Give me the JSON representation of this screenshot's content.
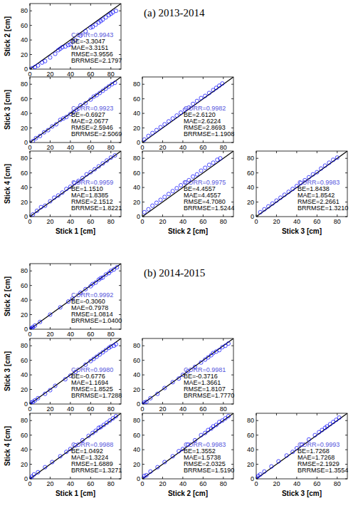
{
  "chart_data": [
    {
      "type": "scatter",
      "title": "(a) 2013-2014",
      "y_label": "Stick 2 [cm]",
      "x": [
        2,
        5,
        8,
        12,
        15,
        20,
        25,
        28,
        30,
        32,
        35,
        38,
        40,
        42,
        45,
        50,
        55,
        60,
        62,
        65,
        68,
        70,
        72,
        75,
        78,
        80,
        82,
        85
      ],
      "values": [
        1,
        3,
        5,
        9,
        11,
        16,
        21,
        26,
        28,
        30,
        31,
        33,
        34,
        38,
        40,
        46,
        52,
        57,
        58,
        61,
        64,
        66,
        68,
        71,
        74,
        76,
        78,
        80
      ],
      "color": "#0000ff",
      "marker": "open-circle",
      "xlim": [
        0,
        90
      ],
      "ylim": [
        0,
        90
      ],
      "xticks": [
        0,
        20,
        40,
        60,
        80
      ],
      "yticks": [
        0,
        20,
        40,
        60,
        80
      ],
      "annotations": [
        "CORR=0.9943",
        "BE=-3.3047",
        "MAE=3.3151",
        "RMSE=3.9556",
        "BRRMSE=2.1797"
      ]
    },
    {
      "type": "scatter",
      "y_label": "Stick 3 [cm]",
      "x": [
        3,
        6,
        10,
        14,
        18,
        22,
        26,
        30,
        33,
        36,
        40,
        43,
        46,
        50,
        55,
        60,
        63,
        66,
        69,
        72,
        75,
        78,
        81,
        84
      ],
      "values": [
        2,
        6,
        9,
        14,
        17,
        22,
        25,
        31,
        33,
        35,
        39,
        42,
        45,
        51,
        54,
        59,
        63,
        65,
        68,
        71,
        74,
        77,
        80,
        82
      ],
      "color": "#0000ff",
      "marker": "open-circle",
      "xlim": [
        0,
        90
      ],
      "ylim": [
        0,
        90
      ],
      "xticks": [
        0,
        20,
        40,
        60,
        80
      ],
      "yticks": [
        0,
        20,
        40,
        60,
        80
      ],
      "annotations": [
        "CORR=0.9923",
        "BE=-0.6927",
        "MAE=2.0677",
        "RMSE=2.5946",
        "BRRMSE=2.5069"
      ]
    },
    {
      "type": "scatter",
      "x": [
        2,
        6,
        10,
        14,
        18,
        22,
        26,
        30,
        34,
        38,
        42,
        46,
        50,
        54,
        58,
        62,
        66,
        70,
        73,
        76,
        79
      ],
      "values": [
        4,
        9,
        13,
        17,
        21,
        25,
        29,
        33,
        37,
        41,
        45,
        48,
        53,
        57,
        61,
        64,
        68,
        72,
        75,
        78,
        81
      ],
      "color": "#0000ff",
      "marker": "open-circle",
      "xlim": [
        0,
        90
      ],
      "ylim": [
        0,
        90
      ],
      "xticks": [
        0,
        20,
        40,
        60,
        80
      ],
      "yticks": [
        0,
        20,
        40,
        60,
        80
      ],
      "annotations": [
        "CORR=0.9982",
        "BE=2.6120",
        "MAE=2.6224",
        "RMSE=2.8693",
        "BRRMSE=1.1908"
      ]
    },
    {
      "type": "scatter",
      "y_label": "Stick 4 [cm]",
      "x_label": "Stick 1 [cm]",
      "x": [
        3,
        7,
        11,
        15,
        20,
        24,
        28,
        32,
        36,
        40,
        44,
        48,
        52,
        56,
        60,
        64,
        68,
        72,
        76,
        80,
        84
      ],
      "values": [
        3,
        8,
        13,
        15,
        21,
        26,
        29,
        33,
        38,
        41,
        46,
        49,
        53,
        58,
        61,
        65,
        69,
        73,
        77,
        81,
        84
      ],
      "color": "#0000ff",
      "marker": "open-circle",
      "xlim": [
        0,
        90
      ],
      "ylim": [
        0,
        90
      ],
      "xticks": [
        0,
        20,
        40,
        60,
        80
      ],
      "yticks": [
        0,
        20,
        40,
        60,
        80
      ],
      "annotations": [
        "CORR=0.9959",
        "BE=1.1510",
        "MAE=1.8385",
        "RMSE=2.1512",
        "BRRMSE=1.8221"
      ]
    },
    {
      "type": "scatter",
      "x_label": "Stick 2 [cm]",
      "x": [
        2,
        6,
        10,
        14,
        18,
        22,
        26,
        30,
        34,
        38,
        42,
        46,
        50,
        54,
        58,
        62,
        66,
        70,
        74,
        77
      ],
      "values": [
        6,
        10,
        15,
        19,
        23,
        27,
        31,
        35,
        39,
        43,
        47,
        50,
        55,
        58,
        63,
        67,
        71,
        74,
        78,
        80
      ],
      "color": "#0000ff",
      "marker": "open-circle",
      "xlim": [
        0,
        90
      ],
      "ylim": [
        0,
        90
      ],
      "xticks": [
        0,
        20,
        40,
        60,
        80
      ],
      "yticks": [
        0,
        20,
        40,
        60,
        80
      ],
      "annotations": [
        "CORR=0.9975",
        "BE=4.4557",
        "MAE=4.4557",
        "RMSE=4.7080",
        "BRRMSE=1.5244"
      ]
    },
    {
      "type": "scatter",
      "x_label": "Stick 3 [cm]",
      "x": [
        4,
        8,
        12,
        16,
        20,
        24,
        28,
        32,
        36,
        40,
        44,
        48,
        52,
        56,
        60,
        64,
        68,
        72,
        76,
        80
      ],
      "values": [
        6,
        10,
        14,
        18,
        22,
        26,
        30,
        34,
        38,
        42,
        46,
        50,
        54,
        58,
        61,
        66,
        70,
        74,
        78,
        81
      ],
      "color": "#0000ff",
      "marker": "open-circle",
      "xlim": [
        0,
        90
      ],
      "ylim": [
        0,
        90
      ],
      "xticks": [
        0,
        20,
        40,
        60,
        80
      ],
      "yticks": [
        0,
        20,
        40,
        60,
        80
      ],
      "annotations": [
        "CORR=0.9983",
        "BE=1.8438",
        "MAE=1.8542",
        "RMSE=2.2661",
        "BRRMSE=1.3210"
      ]
    },
    {
      "type": "scatter",
      "title": "(b) 2014-2015",
      "y_label": "Stick 2 [cm]",
      "x": [
        0,
        1,
        2,
        3,
        5,
        10,
        20,
        30,
        38,
        42,
        50,
        55,
        60,
        62,
        65,
        68,
        70,
        72,
        75,
        78,
        80,
        83,
        86
      ],
      "values": [
        0,
        1,
        1,
        3,
        5,
        10,
        20,
        30,
        38,
        42,
        50,
        55,
        59,
        62,
        64,
        68,
        70,
        71,
        75,
        77,
        80,
        82,
        85
      ],
      "color": "#0000ff",
      "marker": "open-circle",
      "xlim": [
        0,
        90
      ],
      "ylim": [
        0,
        90
      ],
      "xticks": [
        0,
        20,
        40,
        60,
        80
      ],
      "yticks": [
        0,
        20,
        40,
        60,
        80
      ],
      "annotations": [
        "CORR=0.9992",
        "BE=-0.3060",
        "MAE=0.7978",
        "RMSE=1.0814",
        "BRRMSE=1.0400"
      ]
    },
    {
      "type": "scatter",
      "y_label": "Stick 3 [cm]",
      "x": [
        0,
        1,
        3,
        5,
        8,
        15,
        20,
        25,
        35,
        40,
        45,
        55,
        60,
        63,
        66,
        69,
        72,
        75,
        78,
        80,
        83,
        85
      ],
      "values": [
        0,
        2,
        3,
        5,
        8,
        14,
        19,
        25,
        34,
        39,
        44,
        54,
        59,
        62,
        65,
        68,
        71,
        74,
        77,
        79,
        80,
        82
      ],
      "color": "#0000ff",
      "marker": "open-circle",
      "xlim": [
        0,
        90
      ],
      "ylim": [
        0,
        90
      ],
      "xticks": [
        0,
        20,
        40,
        60,
        80
      ],
      "yticks": [
        0,
        20,
        40,
        60,
        80
      ],
      "annotations": [
        "CORR=0.9980",
        "BE=-0.6776",
        "MAE=1.1694",
        "RMSE=1.8525",
        "BRRMSE=1.7288"
      ]
    },
    {
      "type": "scatter",
      "x": [
        0,
        2,
        4,
        8,
        15,
        22,
        30,
        36,
        40,
        45,
        52,
        58,
        62,
        65,
        68,
        70,
        73,
        76,
        79,
        82,
        85
      ],
      "values": [
        0,
        2,
        3,
        8,
        14,
        22,
        30,
        35,
        40,
        45,
        51,
        57,
        61,
        64,
        67,
        70,
        72,
        74,
        78,
        80,
        83
      ],
      "color": "#0000ff",
      "marker": "open-circle",
      "xlim": [
        0,
        90
      ],
      "ylim": [
        0,
        90
      ],
      "xticks": [
        0,
        20,
        40,
        60,
        80
      ],
      "yticks": [
        0,
        20,
        40,
        60,
        80
      ],
      "annotations": [
        "CORR=0.9981",
        "BE=-0.3716",
        "MAE=1.3661",
        "RMSE=1.8107",
        "BRRMSE=1.7770"
      ]
    },
    {
      "type": "scatter",
      "y_label": "Stick 4 [cm]",
      "x_label": "Stick 1 [cm]",
      "x": [
        0,
        2,
        4,
        8,
        15,
        22,
        30,
        36,
        40,
        45,
        52,
        58,
        62,
        65,
        68,
        70,
        73,
        76,
        79,
        82,
        85
      ],
      "values": [
        1,
        3,
        6,
        9,
        16,
        23,
        31,
        37,
        41,
        46,
        53,
        59,
        63,
        66,
        70,
        71,
        74,
        77,
        80,
        83,
        86
      ],
      "color": "#0000ff",
      "marker": "open-circle",
      "xlim": [
        0,
        90
      ],
      "ylim": [
        0,
        90
      ],
      "xticks": [
        0,
        20,
        40,
        60,
        80
      ],
      "yticks": [
        0,
        20,
        40,
        60,
        80
      ],
      "annotations": [
        "CORR=0.9988",
        "BE=1.0492",
        "MAE=1.3224",
        "RMSE=1.6889",
        "BRRMSE=1.3271"
      ]
    },
    {
      "type": "scatter",
      "x_label": "Stick 2 [cm]",
      "x": [
        0,
        2,
        4,
        8,
        15,
        22,
        30,
        36,
        40,
        45,
        52,
        58,
        62,
        65,
        68,
        70,
        73,
        76,
        79,
        82,
        85
      ],
      "values": [
        1,
        4,
        5,
        10,
        16,
        23,
        31,
        38,
        41,
        47,
        53,
        60,
        63,
        67,
        69,
        72,
        74,
        78,
        80,
        83,
        86
      ],
      "color": "#0000ff",
      "marker": "open-circle",
      "xlim": [
        0,
        90
      ],
      "ylim": [
        0,
        90
      ],
      "xticks": [
        0,
        20,
        40,
        60,
        80
      ],
      "yticks": [
        0,
        20,
        40,
        60,
        80
      ],
      "annotations": [
        "CORR=0.9983",
        "BE=1.3552",
        "MAE=1.5738",
        "RMSE=2.0325",
        "BRRMSE=1.5190"
      ]
    },
    {
      "type": "scatter",
      "x_label": "Stick 3 [cm]",
      "x": [
        0,
        2,
        4,
        8,
        15,
        22,
        30,
        36,
        40,
        45,
        52,
        58,
        62,
        65,
        68,
        70,
        73,
        76,
        79,
        82
      ],
      "values": [
        2,
        4,
        6,
        10,
        17,
        24,
        32,
        37,
        42,
        47,
        54,
        60,
        64,
        67,
        70,
        72,
        75,
        78,
        81,
        84
      ],
      "color": "#0000ff",
      "marker": "open-circle",
      "xlim": [
        0,
        90
      ],
      "ylim": [
        0,
        90
      ],
      "xticks": [
        0,
        20,
        40,
        60,
        80
      ],
      "yticks": [
        0,
        20,
        40,
        60,
        80
      ],
      "annotations": [
        "CORR=0.9993",
        "BE=1.7268",
        "MAE=1.7268",
        "RMSE=2.1929",
        "BRRMSE=1.3554"
      ]
    }
  ]
}
